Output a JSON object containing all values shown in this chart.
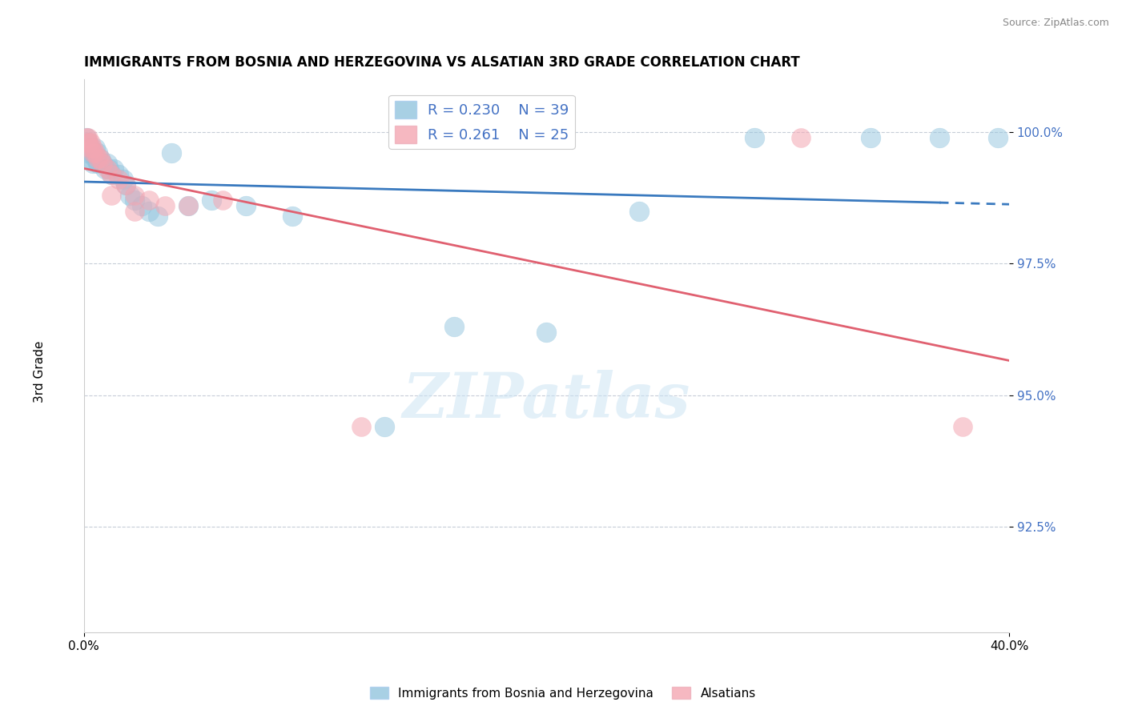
{
  "title": "IMMIGRANTS FROM BOSNIA AND HERZEGOVINA VS ALSATIAN 3RD GRADE CORRELATION CHART",
  "source": "Source: ZipAtlas.com",
  "ylabel": "3rd Grade",
  "ytick_labels": [
    "92.5%",
    "95.0%",
    "97.5%",
    "100.0%"
  ],
  "ytick_values": [
    0.925,
    0.95,
    0.975,
    1.0
  ],
  "legend_blue_label": "Immigrants from Bosnia and Herzegovina",
  "legend_pink_label": "Alsatians",
  "R_blue": 0.23,
  "N_blue": 39,
  "R_pink": 0.261,
  "N_pink": 25,
  "blue_color": "#92c5de",
  "pink_color": "#f4a6b2",
  "blue_line_color": "#3a7abf",
  "pink_line_color": "#e06070",
  "xlim": [
    0.0,
    0.4
  ],
  "ylim": [
    0.905,
    1.01
  ],
  "blue_x": [
    0.001,
    0.002,
    0.002,
    0.003,
    0.003,
    0.004,
    0.004,
    0.005,
    0.005,
    0.006,
    0.006,
    0.007,
    0.008,
    0.009,
    0.01,
    0.011,
    0.012,
    0.013,
    0.015,
    0.017,
    0.018,
    0.02,
    0.022,
    0.025,
    0.028,
    0.032,
    0.038,
    0.045,
    0.055,
    0.07,
    0.09,
    0.13,
    0.16,
    0.2,
    0.24,
    0.29,
    0.34,
    0.37,
    0.395
  ],
  "blue_y": [
    0.999,
    0.998,
    0.996,
    0.997,
    0.995,
    0.996,
    0.994,
    0.997,
    0.995,
    0.996,
    0.994,
    0.995,
    0.994,
    0.993,
    0.994,
    0.993,
    0.992,
    0.993,
    0.992,
    0.991,
    0.99,
    0.988,
    0.987,
    0.986,
    0.985,
    0.984,
    0.996,
    0.986,
    0.987,
    0.986,
    0.984,
    0.944,
    0.963,
    0.962,
    0.985,
    0.999,
    0.999,
    0.999,
    0.999
  ],
  "pink_x": [
    0.001,
    0.002,
    0.002,
    0.003,
    0.003,
    0.004,
    0.004,
    0.005,
    0.006,
    0.007,
    0.008,
    0.01,
    0.012,
    0.015,
    0.018,
    0.022,
    0.028,
    0.035,
    0.045,
    0.06,
    0.012,
    0.022,
    0.12,
    0.31,
    0.38
  ],
  "pink_y": [
    0.999,
    0.999,
    0.998,
    0.998,
    0.997,
    0.997,
    0.996,
    0.996,
    0.995,
    0.995,
    0.994,
    0.993,
    0.992,
    0.991,
    0.99,
    0.988,
    0.987,
    0.986,
    0.986,
    0.987,
    0.988,
    0.985,
    0.944,
    0.999,
    0.944
  ]
}
